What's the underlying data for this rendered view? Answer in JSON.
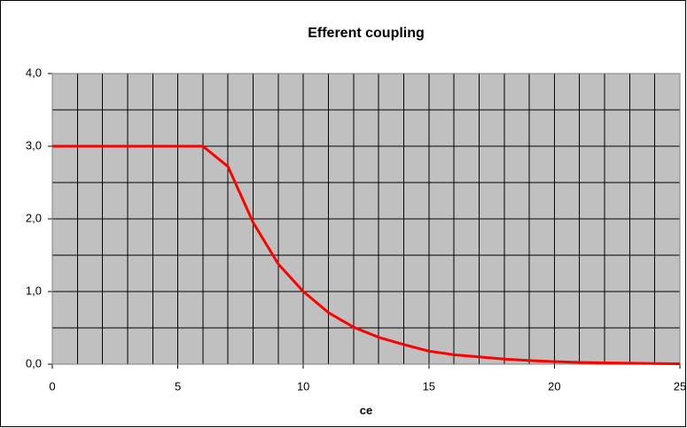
{
  "chart_data": {
    "type": "line",
    "title": "Efferent coupling",
    "x_label": "ce",
    "x": [
      0,
      1,
      2,
      3,
      4,
      5,
      6,
      7,
      8,
      9,
      10,
      11,
      12,
      13,
      14,
      15,
      16,
      17,
      18,
      19,
      20,
      21,
      22,
      23,
      24,
      25
    ],
    "series": [
      {
        "color": "#ff0000",
        "values": [
          3.0,
          3.0,
          3.0,
          3.0,
          3.0,
          3.0,
          3.0,
          2.72,
          1.95,
          1.38,
          1.0,
          0.71,
          0.51,
          0.37,
          0.27,
          0.18,
          0.13,
          0.1,
          0.07,
          0.05,
          0.035,
          0.025,
          0.018,
          0.013,
          0.009,
          0.006
        ]
      }
    ],
    "xlim": [
      0,
      25
    ],
    "xticks": [
      0,
      5,
      10,
      15,
      20,
      25
    ],
    "x_minor_ticks": [
      1,
      2,
      3,
      4,
      6,
      7,
      8,
      9,
      11,
      12,
      13,
      14,
      16,
      17,
      18,
      19,
      21,
      22,
      23,
      24
    ],
    "ylim": [
      0,
      4
    ],
    "yticks": [
      {
        "value": 0,
        "label": "0,0"
      },
      {
        "value": 1,
        "label": "1,0"
      },
      {
        "value": 2,
        "label": "2,0"
      },
      {
        "value": 3,
        "label": "3,0"
      },
      {
        "value": 4,
        "label": "4,0"
      }
    ],
    "y_minor_ticks": [
      0.5,
      1.5,
      2.5,
      3.5
    ],
    "grid": true,
    "plot_background": "#c0c0c0"
  }
}
